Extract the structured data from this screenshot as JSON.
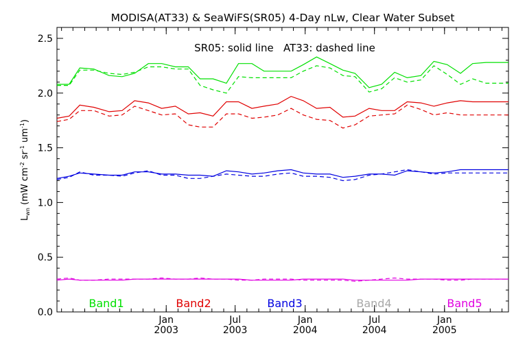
{
  "chart_data": {
    "type": "line",
    "title": "MODISA(AT33) & SeaWiFS(SR05) 4-Day nLw, Clear Water Subset",
    "annotation": "SR05: solid line   AT33: dashed line",
    "ylabel": {
      "main": "L",
      "sub": "wn",
      "units_open": " (mW cm",
      "sup1": "-2",
      "mid": " sr",
      "sup2": "-1",
      "tail": " um",
      "sup3": "-1",
      "close": ")"
    },
    "ylim": [
      0.0,
      2.6
    ],
    "y_ticks": [
      "0.0",
      "0.5",
      "1.0",
      "1.5",
      "2.0",
      "2.5"
    ],
    "xlim": [
      "2002-03-20",
      "2005-06-18"
    ],
    "x_ticks": [
      {
        "x": "2003-01-01",
        "line1": "Jan",
        "line2": "2003"
      },
      {
        "x": "2003-07-01",
        "line1": "Jul",
        "line2": "2003"
      },
      {
        "x": "2004-01-01",
        "line1": "Jan",
        "line2": "2004"
      },
      {
        "x": "2004-07-01",
        "line1": "Jul",
        "line2": "2004"
      },
      {
        "x": "2005-01-01",
        "line1": "Jan",
        "line2": "2005"
      }
    ],
    "x": [
      "2002-03-20",
      "2002-04-21",
      "2002-05-19",
      "2002-06-25",
      "2002-08-04",
      "2002-09-07",
      "2002-10-10",
      "2002-11-15",
      "2002-12-20",
      "2003-01-25",
      "2003-02-28",
      "2003-03-31",
      "2003-05-04",
      "2003-06-08",
      "2003-07-10",
      "2003-08-14",
      "2003-09-15",
      "2003-10-21",
      "2003-11-25",
      "2003-12-27",
      "2004-01-31",
      "2004-03-06",
      "2004-04-09",
      "2004-05-11",
      "2004-06-17",
      "2004-07-20",
      "2004-08-23",
      "2004-09-25",
      "2004-10-31",
      "2004-12-04",
      "2005-01-08",
      "2005-02-12",
      "2005-03-16",
      "2005-04-20",
      "2005-05-25",
      "2005-06-18"
    ],
    "series": [
      {
        "name": "Band1",
        "kind": "SR05",
        "color": "#00e000",
        "dash": false,
        "values": [
          2.08,
          2.08,
          2.23,
          2.22,
          2.16,
          2.15,
          2.18,
          2.27,
          2.27,
          2.24,
          2.24,
          2.13,
          2.13,
          2.09,
          2.27,
          2.27,
          2.2,
          2.2,
          2.2,
          2.26,
          2.33,
          2.27,
          2.21,
          2.18,
          2.05,
          2.08,
          2.19,
          2.14,
          2.16,
          2.29,
          2.26,
          2.18,
          2.27,
          2.28,
          2.28,
          2.28
        ]
      },
      {
        "name": "Band1",
        "kind": "AT33",
        "color": "#00e000",
        "dash": true,
        "values": [
          2.07,
          2.07,
          2.21,
          2.21,
          2.18,
          2.17,
          2.19,
          2.24,
          2.24,
          2.22,
          2.22,
          2.07,
          2.03,
          2.0,
          2.15,
          2.14,
          2.14,
          2.14,
          2.14,
          2.2,
          2.25,
          2.23,
          2.16,
          2.15,
          2.01,
          2.04,
          2.14,
          2.1,
          2.12,
          2.25,
          2.17,
          2.08,
          2.13,
          2.09,
          2.09,
          2.09
        ]
      },
      {
        "name": "Band2",
        "kind": "SR05",
        "color": "#e00000",
        "dash": false,
        "values": [
          1.77,
          1.79,
          1.89,
          1.87,
          1.83,
          1.84,
          1.93,
          1.91,
          1.86,
          1.88,
          1.81,
          1.82,
          1.79,
          1.92,
          1.92,
          1.86,
          1.88,
          1.9,
          1.97,
          1.93,
          1.86,
          1.87,
          1.78,
          1.79,
          1.86,
          1.84,
          1.84,
          1.92,
          1.91,
          1.88,
          1.91,
          1.93,
          1.92,
          1.92,
          1.92,
          1.92
        ]
      },
      {
        "name": "Band2",
        "kind": "AT33",
        "color": "#e00000",
        "dash": true,
        "values": [
          1.74,
          1.76,
          1.84,
          1.84,
          1.79,
          1.8,
          1.88,
          1.84,
          1.8,
          1.81,
          1.71,
          1.69,
          1.69,
          1.81,
          1.81,
          1.77,
          1.78,
          1.8,
          1.86,
          1.8,
          1.76,
          1.75,
          1.68,
          1.71,
          1.79,
          1.8,
          1.81,
          1.89,
          1.85,
          1.8,
          1.82,
          1.8,
          1.8,
          1.8,
          1.8,
          1.8
        ]
      },
      {
        "name": "Band3",
        "kind": "SR05",
        "color": "#0000e0",
        "dash": false,
        "values": [
          1.22,
          1.24,
          1.27,
          1.26,
          1.25,
          1.25,
          1.28,
          1.28,
          1.26,
          1.26,
          1.25,
          1.25,
          1.24,
          1.29,
          1.28,
          1.26,
          1.27,
          1.29,
          1.3,
          1.27,
          1.26,
          1.26,
          1.23,
          1.24,
          1.26,
          1.26,
          1.25,
          1.29,
          1.28,
          1.27,
          1.28,
          1.3,
          1.3,
          1.3,
          1.3,
          1.3
        ]
      },
      {
        "name": "Band3",
        "kind": "AT33",
        "color": "#0000e0",
        "dash": true,
        "values": [
          1.21,
          1.23,
          1.28,
          1.25,
          1.25,
          1.24,
          1.27,
          1.29,
          1.25,
          1.25,
          1.22,
          1.22,
          1.24,
          1.26,
          1.25,
          1.24,
          1.24,
          1.26,
          1.27,
          1.24,
          1.24,
          1.23,
          1.2,
          1.21,
          1.25,
          1.26,
          1.28,
          1.3,
          1.28,
          1.26,
          1.27,
          1.27,
          1.27,
          1.27,
          1.27,
          1.27
        ]
      },
      {
        "name": "Band5",
        "kind": "SR05",
        "color": "#e000e0",
        "dash": false,
        "values": [
          0.29,
          0.3,
          0.29,
          0.29,
          0.29,
          0.29,
          0.3,
          0.3,
          0.3,
          0.3,
          0.3,
          0.3,
          0.3,
          0.3,
          0.3,
          0.29,
          0.29,
          0.29,
          0.29,
          0.3,
          0.3,
          0.3,
          0.3,
          0.29,
          0.29,
          0.29,
          0.29,
          0.29,
          0.3,
          0.3,
          0.3,
          0.3,
          0.3,
          0.3,
          0.3,
          0.3
        ]
      },
      {
        "name": "Band5",
        "kind": "AT33",
        "color": "#e000e0",
        "dash": true,
        "values": [
          0.3,
          0.31,
          0.29,
          0.29,
          0.3,
          0.3,
          0.3,
          0.3,
          0.31,
          0.3,
          0.3,
          0.31,
          0.3,
          0.3,
          0.29,
          0.29,
          0.3,
          0.3,
          0.3,
          0.29,
          0.29,
          0.29,
          0.29,
          0.28,
          0.29,
          0.3,
          0.31,
          0.3,
          0.3,
          0.3,
          0.29,
          0.29,
          0.3,
          0.3,
          0.3,
          0.3
        ]
      }
    ],
    "legend": [
      {
        "label": "Band1",
        "color": "#00e000"
      },
      {
        "label": "Band2",
        "color": "#e00000"
      },
      {
        "label": "Band3",
        "color": "#0000e0"
      },
      {
        "label": "Band4",
        "color": "#a8a8a8"
      },
      {
        "label": "Band5",
        "color": "#e000e0"
      }
    ],
    "legend_placement": "bottom, inside plot",
    "grid": false
  }
}
